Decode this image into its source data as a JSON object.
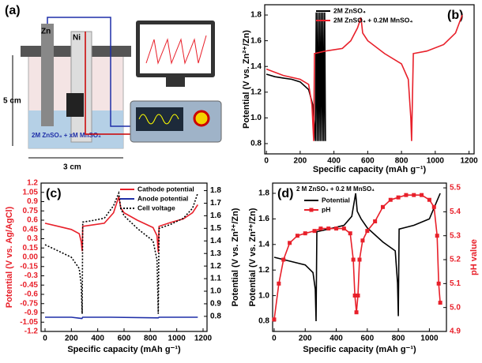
{
  "panel_a": {
    "label": "(a)",
    "anode": "Zn",
    "cathode": "Ni",
    "height": "5 cm",
    "width": "3 cm",
    "electrolyte": "2M ZnSO₄ + xM MnSO₄"
  },
  "chart_data": [
    {
      "type": "line",
      "label": "(b)",
      "xlabel": "Specific capacity (mAh g⁻¹)",
      "ylabel": "Potential (V vs. Zn²⁺/Zn)",
      "xlim": [
        -10,
        1230
      ],
      "xticks": [
        0,
        200,
        400,
        600,
        800,
        1000,
        1200
      ],
      "ylim": [
        0.72,
        1.88
      ],
      "yticks": [
        0.8,
        {
          "value": 1.0,
          "label": "1.0"
        },
        1.2,
        1.4,
        1.6,
        1.8
      ],
      "legend": "upper center",
      "series": [
        {
          "name": "2M ZnSO₄",
          "color": "#000000",
          "x": [
            0,
            50,
            100,
            150,
            200,
            250,
            275,
            290,
            295,
            300,
            305,
            310,
            315,
            320,
            325,
            330,
            335,
            340,
            345,
            350
          ],
          "values": [
            1.34,
            1.32,
            1.31,
            1.3,
            1.28,
            1.22,
            1.1,
            0.82,
            1.82,
            0.82,
            1.82,
            0.82,
            1.82,
            0.82,
            1.82,
            0.82,
            1.82,
            0.82,
            1.82,
            0.82
          ]
        },
        {
          "name": "2M ZnSO₄ + 0.2M MnSO₄",
          "color": "#e8202a",
          "x": [
            0,
            100,
            200,
            250,
            270,
            280,
            285,
            350,
            450,
            500,
            540,
            560,
            570,
            600,
            700,
            800,
            840,
            855,
            860,
            870,
            950,
            1050,
            1120,
            1160
          ],
          "values": [
            1.38,
            1.33,
            1.3,
            1.26,
            1.1,
            0.82,
            1.5,
            1.52,
            1.54,
            1.6,
            1.7,
            1.78,
            1.66,
            1.6,
            1.5,
            1.42,
            1.3,
            1.0,
            0.82,
            1.5,
            1.52,
            1.57,
            1.66,
            1.8
          ]
        }
      ]
    },
    {
      "type": "line",
      "label": "(c)",
      "xlabel": "Specific capacity (mAh g⁻¹)",
      "ylabel": "Potential (V vs. Ag/AgCl)",
      "y2label": "Potential (V vs. Zn²⁺/Zn)",
      "ycolor": "#e8202a",
      "y2color": "#000000",
      "xlim": [
        -30,
        1230
      ],
      "xticks": [
        0,
        200,
        400,
        600,
        800,
        1000,
        1200
      ],
      "ylim": [
        -1.2,
        1.2
      ],
      "yticks": [
        1.2,
        1.05,
        0.9,
        0.75,
        0.6,
        0.45,
        0.3,
        0.15,
        {
          "value": 0,
          "label": "0.00"
        },
        -0.15,
        -0.3,
        -0.45,
        -0.6,
        -0.75,
        -0.9,
        -1.05,
        -1.2
      ],
      "y2lim": [
        0.68,
        1.86
      ],
      "y2ticks": [
        0.8,
        0.9,
        {
          "value": 1.0,
          "label": "1.0"
        },
        1.1,
        1.2,
        1.3,
        1.4,
        1.5,
        1.6,
        1.7,
        1.8
      ],
      "legend": "upper right",
      "series": [
        {
          "name": "Cathode potential",
          "color": "#e8202a",
          "x": [
            0,
            100,
            200,
            260,
            275,
            282,
            286,
            350,
            450,
            520,
            560,
            575,
            600,
            700,
            820,
            850,
            860,
            866,
            950,
            1050,
            1120,
            1160
          ],
          "values": [
            0.55,
            0.5,
            0.45,
            0.38,
            0.25,
            0.1,
            0.5,
            0.52,
            0.55,
            0.72,
            0.98,
            0.8,
            0.72,
            0.6,
            0.48,
            0.35,
            0.08,
            0.5,
            0.56,
            0.62,
            0.72,
            0.85
          ]
        },
        {
          "name": "Anode potential",
          "color": "#1f2fa8",
          "x": [
            0,
            200,
            280,
            286,
            500,
            860,
            866,
            1160
          ],
          "values": [
            -0.97,
            -0.97,
            -0.99,
            -0.97,
            -0.97,
            -0.98,
            -0.97,
            -0.97
          ]
        },
        {
          "name": "Cell voltage",
          "color": "#000000",
          "axis": "y2",
          "dash": true,
          "x": [
            0,
            100,
            200,
            260,
            275,
            282,
            286,
            350,
            450,
            520,
            560,
            575,
            600,
            700,
            820,
            850,
            860,
            866,
            950,
            1050,
            1120,
            1160
          ],
          "values": [
            1.37,
            1.32,
            1.27,
            1.18,
            1.05,
            0.82,
            1.55,
            1.56,
            1.58,
            1.68,
            1.78,
            1.66,
            1.6,
            1.5,
            1.4,
            1.25,
            0.82,
            1.5,
            1.53,
            1.58,
            1.66,
            1.78
          ]
        }
      ]
    },
    {
      "type": "line",
      "label": "(d)",
      "annotation": "2 M ZnSO₄ + 0.2 M MnSO₄",
      "xlabel": "Specific capacity (mAh g⁻¹)",
      "ylabel": "Potential (V vs. Zn²⁺/Zn)",
      "y2label": "pH value",
      "ycolor": "#000000",
      "y2color": "#e8202a",
      "xlim": [
        -10,
        1110
      ],
      "xticks": [
        0,
        200,
        400,
        600,
        800,
        1000
      ],
      "ylim": [
        0.72,
        1.88
      ],
      "yticks": [
        0.8,
        {
          "value": 1.0,
          "label": "1.0"
        },
        1.2,
        1.4,
        1.6,
        1.8
      ],
      "y2lim": [
        4.9,
        5.52
      ],
      "y2ticks": [
        4.9,
        {
          "value": 5.0,
          "label": "5.0"
        },
        5.1,
        5.2,
        5.3,
        5.4,
        5.5
      ],
      "legend": "upper left",
      "series": [
        {
          "name": "Potential",
          "color": "#000000",
          "x": [
            0,
            100,
            200,
            250,
            265,
            270,
            275,
            350,
            450,
            500,
            525,
            535,
            560,
            600,
            700,
            780,
            795,
            800,
            805,
            900,
            1000,
            1070
          ],
          "values": [
            1.3,
            1.27,
            1.24,
            1.18,
            1.05,
            0.8,
            1.5,
            1.52,
            1.55,
            1.62,
            1.8,
            1.66,
            1.6,
            1.53,
            1.42,
            1.35,
            1.1,
            0.84,
            1.52,
            1.55,
            1.6,
            1.8
          ]
        },
        {
          "name": "pH",
          "color": "#e8202a",
          "axis": "y2",
          "marker": "square",
          "x": [
            0,
            30,
            60,
            100,
            150,
            200,
            260,
            300,
            350,
            400,
            450,
            490,
            510,
            520,
            530,
            540,
            550,
            570,
            600,
            650,
            700,
            750,
            800,
            850,
            900,
            950,
            1000,
            1030,
            1050,
            1060,
            1070
          ],
          "values": [
            4.95,
            5.1,
            5.2,
            5.27,
            5.3,
            5.31,
            5.32,
            5.33,
            5.33,
            5.33,
            5.33,
            5.31,
            5.2,
            5.05,
            4.98,
            5.05,
            5.2,
            5.28,
            5.32,
            5.36,
            5.42,
            5.45,
            5.46,
            5.47,
            5.47,
            5.47,
            5.45,
            5.42,
            5.3,
            5.1,
            5.02
          ]
        }
      ]
    }
  ]
}
